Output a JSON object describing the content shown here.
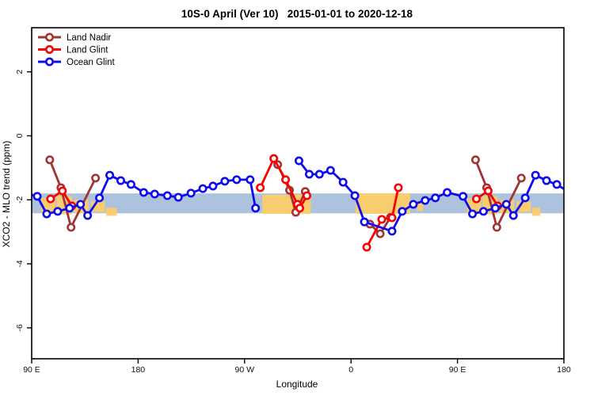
{
  "title": "10S-0 April (Ver 10)   2015-01-01 to 2020-12-18",
  "chart_data": {
    "type": "line",
    "title": "10S-0 April (Ver 10)   2015-01-01 to 2020-12-18",
    "xlabel": "Longitude",
    "ylabel": "XCO2 - MLO trend (ppm)",
    "x_axis_span_deg": 450,
    "x_ticks": [
      {
        "t": 0,
        "label": "90 E"
      },
      {
        "t": 90,
        "label": "180"
      },
      {
        "t": 180,
        "label": "90 W"
      },
      {
        "t": 270,
        "label": "0"
      },
      {
        "t": 360,
        "label": "90 E"
      },
      {
        "t": 450,
        "label": "180"
      }
    ],
    "ylim": [
      -7,
      3.4
    ],
    "y_ticks": [
      {
        "v": 2,
        "label": "2"
      },
      {
        "v": 0,
        "label": "0"
      },
      {
        "v": -2,
        "label": "-2"
      },
      {
        "v": -4,
        "label": "-4"
      },
      {
        "v": -6,
        "label": "-6"
      }
    ],
    "grid": false,
    "legend": {
      "position": "top-left",
      "entries": [
        "Land Nadir",
        "Land Glint",
        "Ocean Glint"
      ]
    },
    "band": {
      "name": "reference-band",
      "color": "#adc2dd",
      "v_top": -1.8,
      "v_bottom": -2.42
    },
    "land_patch_color": "#fbce68",
    "land_patches": [
      {
        "t0": 8,
        "t1": 20,
        "v0": -1.95,
        "v1": -2.42
      },
      {
        "t0": 21,
        "t1": 34,
        "v0": -1.88,
        "v1": -2.45
      },
      {
        "t0": 36,
        "t1": 48,
        "v0": -2.0,
        "v1": -2.42
      },
      {
        "t0": 50,
        "t1": 62,
        "v0": -2.05,
        "v1": -2.38
      },
      {
        "t0": 63,
        "t1": 72,
        "v0": -2.25,
        "v1": -2.5
      },
      {
        "t0": 195,
        "t1": 236,
        "v0": -1.84,
        "v1": -2.44
      },
      {
        "t0": 274,
        "t1": 320,
        "v0": -1.8,
        "v1": -2.44
      },
      {
        "t0": 326,
        "t1": 331,
        "v0": -2.1,
        "v1": -2.35
      },
      {
        "t0": 368,
        "t1": 380,
        "v0": -1.95,
        "v1": -2.42
      },
      {
        "t0": 381,
        "t1": 394,
        "v0": -1.88,
        "v1": -2.45
      },
      {
        "t0": 396,
        "t1": 408,
        "v0": -2.0,
        "v1": -2.42
      },
      {
        "t0": 410,
        "t1": 422,
        "v0": -2.05,
        "v1": -2.38
      },
      {
        "t0": 423,
        "t1": 430,
        "v0": -2.25,
        "v1": -2.5
      }
    ],
    "series": [
      {
        "name": "Land Nadir",
        "color": "#a03634",
        "segments": [
          [
            [
              15.3,
              -0.75
            ],
            [
              24.7,
              -1.62
            ],
            [
              33.3,
              -2.86
            ],
            [
              54,
              -1.32
            ]
          ],
          [
            [
              208,
              -0.9
            ],
            [
              218,
              -1.7
            ],
            [
              223.3,
              -2.39
            ],
            [
              231.3,
              -1.74
            ]
          ],
          [
            [
              286,
              -2.76
            ],
            [
              294.7,
              -3.06
            ],
            [
              303.3,
              -2.55
            ]
          ],
          [
            [
              375.3,
              -0.75
            ],
            [
              384.7,
              -1.62
            ],
            [
              393.3,
              -2.86
            ],
            [
              414,
              -1.32
            ]
          ]
        ]
      },
      {
        "name": "Land Glint",
        "color": "#f50400",
        "segments": [
          [
            [
              16,
              -1.97
            ],
            [
              26,
              -1.72
            ],
            [
              34,
              -2.19
            ]
          ],
          [
            [
              193.3,
              -1.62
            ],
            [
              204.7,
              -0.71
            ],
            [
              214.7,
              -1.37
            ],
            [
              224.7,
              -2.14
            ],
            [
              226.7,
              -2.26
            ],
            [
              232.7,
              -1.87
            ]
          ],
          [
            [
              283.3,
              -3.48
            ],
            [
              296,
              -2.61
            ],
            [
              304.7,
              -2.56
            ],
            [
              310,
              -1.62
            ]
          ],
          [
            [
              376,
              -1.97
            ],
            [
              386,
              -1.72
            ],
            [
              394,
              -2.19
            ]
          ]
        ]
      },
      {
        "name": "Ocean Glint",
        "color": "#0f0ce8",
        "segments": [
          [
            [
              -8.7,
              -1.77
            ],
            [
              4.7,
              -1.89
            ],
            [
              12.7,
              -2.44
            ],
            [
              22,
              -2.36
            ],
            [
              32,
              -2.26
            ],
            [
              41.3,
              -2.14
            ],
            [
              47.3,
              -2.49
            ],
            [
              57.3,
              -1.94
            ],
            [
              66,
              -1.23
            ],
            [
              75.3,
              -1.4
            ],
            [
              84,
              -1.52
            ],
            [
              94.7,
              -1.77
            ],
            [
              104,
              -1.82
            ],
            [
              114.7,
              -1.87
            ],
            [
              124,
              -1.92
            ],
            [
              134.7,
              -1.79
            ],
            [
              144.7,
              -1.65
            ],
            [
              153.3,
              -1.57
            ],
            [
              163.3,
              -1.42
            ],
            [
              173.3,
              -1.37
            ],
            [
              184.7,
              -1.37
            ],
            [
              189.3,
              -2.26
            ]
          ],
          [
            [
              226,
              -0.78
            ],
            [
              234.7,
              -1.2
            ],
            [
              243.3,
              -1.2
            ],
            [
              252.7,
              -1.08
            ],
            [
              263.3,
              -1.45
            ],
            [
              273.3,
              -1.87
            ],
            [
              281.3,
              -2.69
            ],
            [
              304.7,
              -2.98
            ],
            [
              313.3,
              -2.36
            ],
            [
              322.7,
              -2.14
            ],
            [
              332.7,
              -2.02
            ],
            [
              341.3,
              -1.94
            ],
            [
              351.3,
              -1.77
            ],
            [
              364.7,
              -1.89
            ],
            [
              372.7,
              -2.44
            ],
            [
              382,
              -2.36
            ],
            [
              392,
              -2.26
            ],
            [
              401.3,
              -2.14
            ],
            [
              407.3,
              -2.49
            ],
            [
              417.3,
              -1.94
            ],
            [
              426,
              -1.23
            ],
            [
              435.3,
              -1.4
            ],
            [
              444,
              -1.52
            ],
            [
              454.7,
              -1.77
            ]
          ]
        ]
      }
    ]
  }
}
